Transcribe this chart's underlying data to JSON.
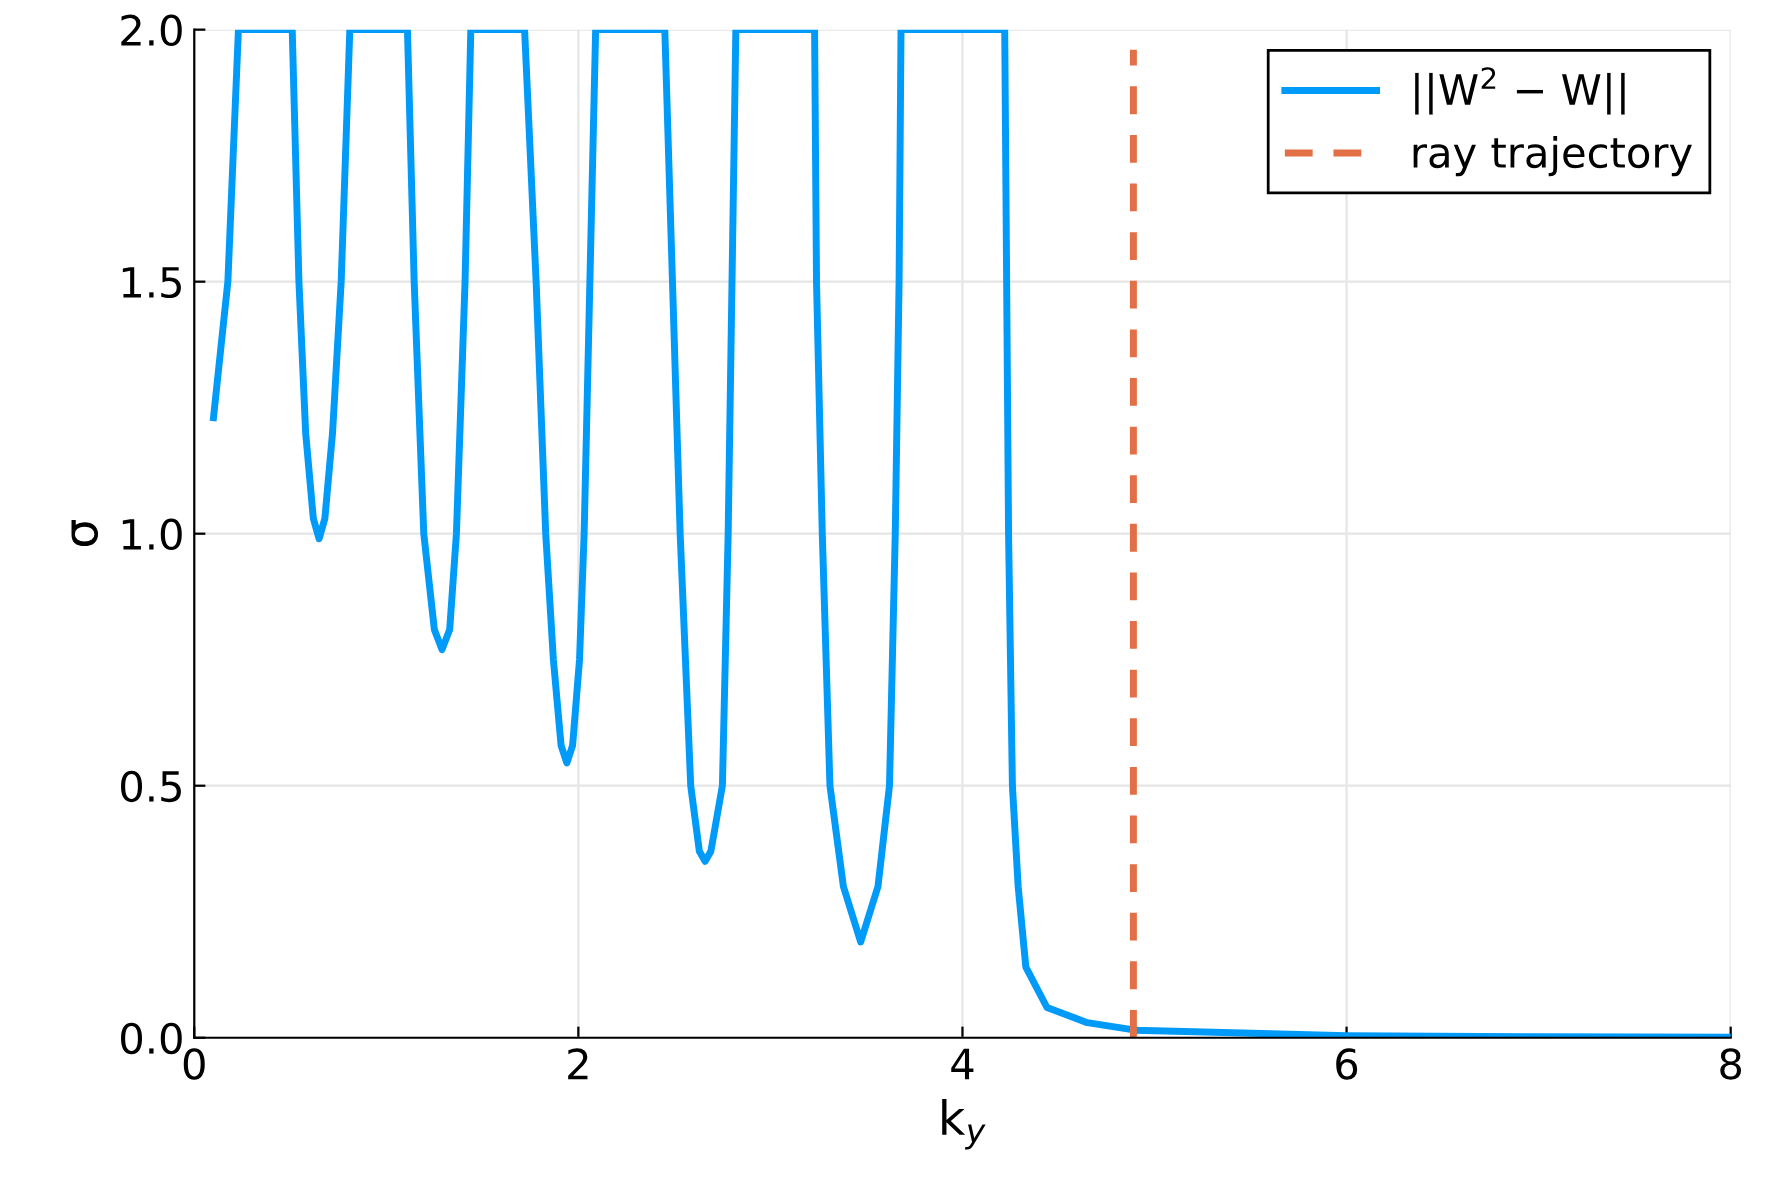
{
  "chart_data": {
    "type": "line",
    "xlabel": "k$_{y}$",
    "ylabel": "σ",
    "xlim": [
      0,
      8
    ],
    "xticks": [
      0,
      2,
      4,
      6,
      8
    ],
    "ylim": [
      0,
      2
    ],
    "yticks": [
      {
        "value": 0,
        "label": "0.0"
      },
      {
        "value": 0.5,
        "label": "0.5"
      },
      {
        "value": 1,
        "label": "1.0"
      },
      {
        "value": 1.5,
        "label": "1.5"
      },
      {
        "value": 2,
        "label": "2.0"
      }
    ],
    "grid": true,
    "legend": "top right",
    "series": [
      {
        "name": "||W$^{2}$ − W||",
        "color": "#009af9",
        "line_style": "solid",
        "x": [
          0.1,
          0.175,
          0.23,
          0.51,
          0.545,
          0.58,
          0.62,
          0.65,
          0.68,
          0.72,
          0.765,
          0.81,
          1.11,
          1.145,
          1.195,
          1.25,
          1.29,
          1.33,
          1.365,
          1.41,
          1.44,
          1.72,
          1.78,
          1.83,
          1.87,
          1.91,
          1.94,
          1.97,
          2.006,
          2.03,
          2.06,
          2.09,
          2.45,
          2.49,
          2.53,
          2.585,
          2.63,
          2.66,
          2.69,
          2.75,
          2.78,
          2.8,
          2.82,
          3.23,
          3.24,
          3.27,
          3.31,
          3.38,
          3.47,
          3.56,
          3.62,
          3.65,
          3.67,
          3.68,
          4.22,
          4.23,
          4.24,
          4.26,
          4.29,
          4.33,
          4.44,
          4.65,
          4.9,
          6,
          7,
          8
        ],
        "values": [
          1.23,
          1.5,
          2,
          2,
          1.5,
          1.2,
          1.03,
          0.99,
          1.03,
          1.2,
          1.5,
          2,
          2,
          1.5,
          1.0,
          0.81,
          0.77,
          0.81,
          1.0,
          1.5,
          2,
          2,
          1.5,
          1.0,
          0.75,
          0.58,
          0.545,
          0.58,
          0.75,
          1.0,
          1.5,
          2,
          2,
          1.5,
          1.0,
          0.5,
          0.37,
          0.35,
          0.37,
          0.5,
          1.0,
          1.5,
          2,
          2,
          1.5,
          1.0,
          0.5,
          0.3,
          0.19,
          0.3,
          0.5,
          1.0,
          1.5,
          2,
          2,
          1.5,
          1.0,
          0.5,
          0.3,
          0.14,
          0.06,
          0.03,
          0.015,
          0.004,
          0.002,
          0.001
        ]
      },
      {
        "name": "ray trajectory",
        "color": "#e26f46",
        "line_style": "dashed",
        "x": [
          4.89,
          4.89
        ],
        "values": [
          0,
          1.96
        ]
      }
    ]
  }
}
